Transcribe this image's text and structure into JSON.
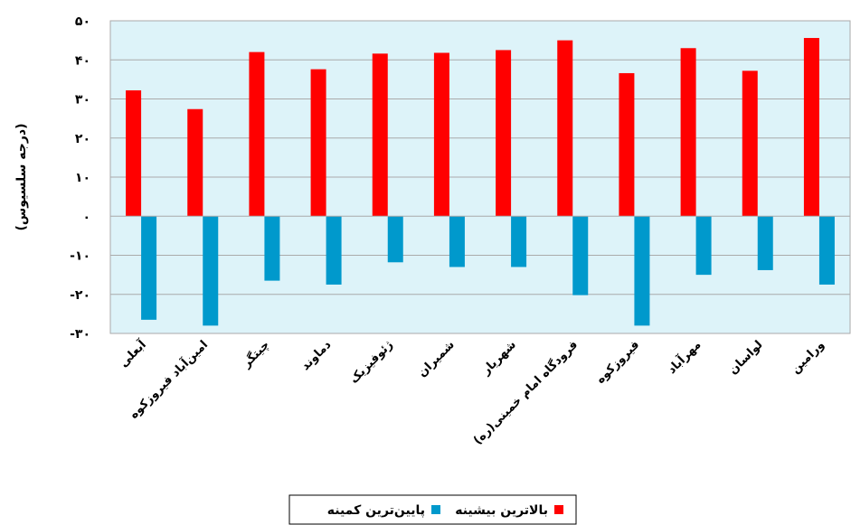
{
  "chart_data": {
    "type": "bar",
    "ylabel": "(درجه سلسیوس)",
    "ylim": [
      -30,
      50
    ],
    "y_ticks": [
      50,
      40,
      30,
      20,
      10,
      0,
      -10,
      -20,
      -30
    ],
    "y_tick_labels": [
      "۵۰",
      "۴۰",
      "۳۰",
      "۲۰",
      "۱۰",
      "۰",
      "-۱۰",
      "-۲۰",
      "-۳۰"
    ],
    "grid": true,
    "legend_position": "bottom",
    "categories": [
      "آبعلی",
      "امین‌آباد فیروزکوه",
      "چیتگر",
      "دماوند",
      "ژئوفیزیک",
      "شمیران",
      "شهریار",
      "فرودگاه امام خمینی(ره)",
      "فیروزکوه",
      "مهرآباد",
      "لواسان",
      "ورامین"
    ],
    "series": [
      {
        "name": "بالاترین بیشینه",
        "color": "#ff0000",
        "values": [
          32.2,
          27.4,
          42.0,
          37.6,
          41.6,
          41.8,
          42.5,
          45.0,
          36.6,
          43.0,
          37.2,
          45.6
        ]
      },
      {
        "name": "پایین‌ترین کمینه",
        "color": "#0099cc",
        "values": [
          -26.5,
          -28.0,
          -16.5,
          -17.5,
          -11.8,
          -13.0,
          -13.0,
          -20.2,
          -28.0,
          -15.0,
          -13.8,
          -17.5
        ]
      }
    ],
    "colors": {
      "plot_background": "#ddf3f9",
      "grid": "#aaaaaa"
    }
  }
}
